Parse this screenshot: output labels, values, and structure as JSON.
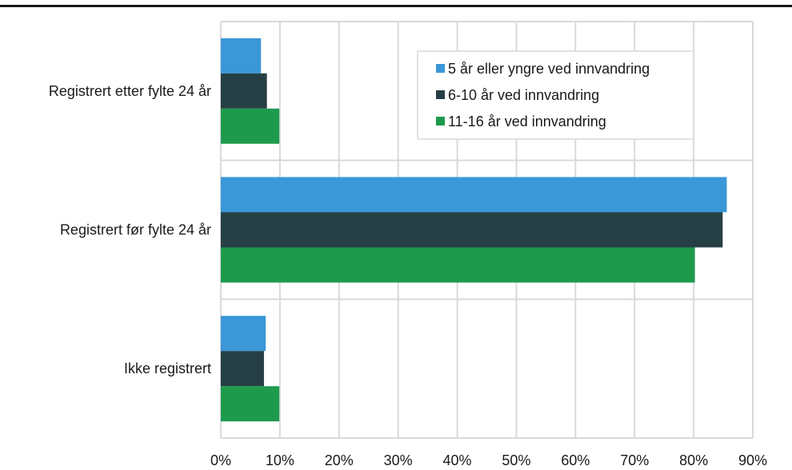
{
  "chart_data": {
    "type": "bar",
    "orientation": "horizontal",
    "categories": [
      "Registrert etter fylte 24 år",
      "Registrert før fylte 24 år",
      "Ikke registrert"
    ],
    "series": [
      {
        "name": "5 år eller yngre ved innvandring",
        "color": "#3a97d8",
        "values": [
          6.8,
          85.6,
          7.6
        ]
      },
      {
        "name": "6-10 år ved innvandring",
        "color": "#263f45",
        "values": [
          7.8,
          84.9,
          7.3
        ]
      },
      {
        "name": "11-16 år ved innvandring",
        "color": "#1e9a4d",
        "values": [
          9.9,
          80.2,
          9.9
        ]
      }
    ],
    "xlim": [
      0,
      90
    ],
    "xticks": [
      "0%",
      "10%",
      "20%",
      "30%",
      "40%",
      "50%",
      "60%",
      "70%",
      "80%",
      "90%"
    ],
    "grid": true,
    "legend": "top-right"
  }
}
